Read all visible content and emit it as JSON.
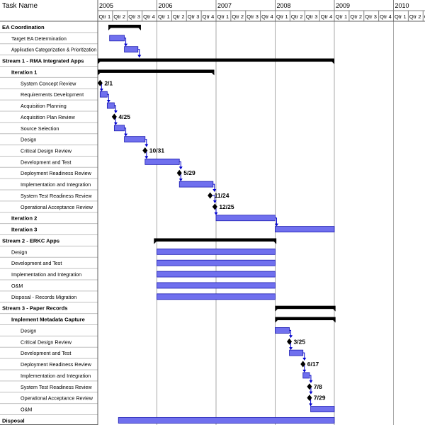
{
  "chart_data": {
    "type": "gantt",
    "header": {
      "task_name_label": "Task Name",
      "years": [
        "2005",
        "2006",
        "2007",
        "2008",
        "2009",
        "2010"
      ],
      "quarters": [
        "Qtr 1",
        "Qtr 2",
        "Qtr 3",
        "Qtr 4"
      ]
    },
    "colors": {
      "bar": "#7070ee",
      "bar_border": "#1a1ab0",
      "summary": "#000000",
      "milestone": "#000000",
      "arrow": "#0000cc",
      "grid": "#c0c0c0",
      "header_grid": "#808080",
      "vertical_grid": "#a8a8a8"
    },
    "tasks": [
      {
        "name": "EA Coordination",
        "level": 0,
        "bold": true,
        "kind": "summary",
        "start": 2005.18,
        "end": 2005.73
      },
      {
        "name": "Target EA Determination",
        "level": 1,
        "bold": false,
        "kind": "task",
        "start": 2005.2,
        "end": 2005.45
      },
      {
        "name": "Application Categorization & Prioritization",
        "level": 1,
        "bold": false,
        "kind": "task",
        "start": 2005.45,
        "end": 2005.68
      },
      {
        "name": "Stream 1 - RMA Integrated Apps",
        "level": 0,
        "bold": true,
        "kind": "summary",
        "start": 2005.0,
        "end": 2009.0
      },
      {
        "name": "Iteration 1",
        "level": 1,
        "bold": true,
        "kind": "summary",
        "start": 2005.0,
        "end": 2006.97
      },
      {
        "name": "System Concept Review",
        "level": 2,
        "bold": false,
        "kind": "milestone",
        "date": 2005.04,
        "label": "2/1"
      },
      {
        "name": "Requirements Development",
        "level": 2,
        "bold": false,
        "kind": "task",
        "start": 2005.04,
        "end": 2005.16
      },
      {
        "name": "Acquisition Planning",
        "level": 2,
        "bold": false,
        "kind": "task",
        "start": 2005.16,
        "end": 2005.28
      },
      {
        "name": "Acquisition Plan Review",
        "level": 2,
        "bold": false,
        "kind": "milestone",
        "date": 2005.28,
        "label": "4/25"
      },
      {
        "name": "Source Selection",
        "level": 2,
        "bold": false,
        "kind": "task",
        "start": 2005.28,
        "end": 2005.45
      },
      {
        "name": "Design",
        "level": 2,
        "bold": false,
        "kind": "task",
        "start": 2005.45,
        "end": 2005.8
      },
      {
        "name": "Critical Design Review",
        "level": 2,
        "bold": false,
        "kind": "milestone",
        "date": 2005.8,
        "label": "10/31"
      },
      {
        "name": "Development and Test",
        "level": 2,
        "bold": false,
        "kind": "task",
        "start": 2005.8,
        "end": 2006.38
      },
      {
        "name": "Deployment Readiness Review",
        "level": 2,
        "bold": false,
        "kind": "milestone",
        "date": 2006.38,
        "label": "5/29"
      },
      {
        "name": "Implementation and Integration",
        "level": 2,
        "bold": false,
        "kind": "task",
        "start": 2006.38,
        "end": 2006.95
      },
      {
        "name": "System Test Readiness Review",
        "level": 2,
        "bold": false,
        "kind": "milestone",
        "date": 2006.9,
        "label": "11/24"
      },
      {
        "name": "Operational Acceptance Review",
        "level": 2,
        "bold": false,
        "kind": "milestone",
        "date": 2006.98,
        "label": "12/25"
      },
      {
        "name": "Iteration 2",
        "level": 1,
        "bold": true,
        "kind": "task",
        "start": 2007.0,
        "end": 2008.0
      },
      {
        "name": "Iteration 3",
        "level": 1,
        "bold": true,
        "kind": "task",
        "start": 2008.0,
        "end": 2009.0
      },
      {
        "name": "Stream 2 - ERKC Apps",
        "level": 0,
        "bold": true,
        "kind": "summary",
        "start": 2005.95,
        "end": 2008.02
      },
      {
        "name": "Design",
        "level": 1,
        "bold": false,
        "kind": "task",
        "start": 2006.0,
        "end": 2008.0
      },
      {
        "name": "Development and Test",
        "level": 1,
        "bold": false,
        "kind": "task",
        "start": 2006.0,
        "end": 2008.0
      },
      {
        "name": "Implementation and Integration",
        "level": 1,
        "bold": false,
        "kind": "task",
        "start": 2006.0,
        "end": 2008.0
      },
      {
        "name": "O&M",
        "level": 1,
        "bold": false,
        "kind": "task",
        "start": 2006.0,
        "end": 2008.0
      },
      {
        "name": "Disposal - Records Migration",
        "level": 1,
        "bold": false,
        "kind": "task",
        "start": 2006.0,
        "end": 2008.0
      },
      {
        "name": "Stream 3 - Paper Records",
        "level": 0,
        "bold": true,
        "kind": "summary",
        "start": 2008.0,
        "end": 2009.02
      },
      {
        "name": "Implement Metadata Capture",
        "level": 1,
        "bold": true,
        "kind": "summary",
        "start": 2008.0,
        "end": 2009.02
      },
      {
        "name": "Design",
        "level": 2,
        "bold": false,
        "kind": "task",
        "start": 2008.0,
        "end": 2008.24
      },
      {
        "name": "Critical Design Review",
        "level": 2,
        "bold": false,
        "kind": "milestone",
        "date": 2008.24,
        "label": "3/25"
      },
      {
        "name": "Development and Test",
        "level": 2,
        "bold": false,
        "kind": "task",
        "start": 2008.24,
        "end": 2008.47
      },
      {
        "name": "Deployment Readiness Review",
        "level": 2,
        "bold": false,
        "kind": "milestone",
        "date": 2008.47,
        "label": "6/17"
      },
      {
        "name": "Implementation and Integration",
        "level": 2,
        "bold": false,
        "kind": "task",
        "start": 2008.47,
        "end": 2008.58
      },
      {
        "name": "System Test Readiness Review",
        "level": 2,
        "bold": false,
        "kind": "milestone",
        "date": 2008.58,
        "label": "7/8"
      },
      {
        "name": "Operational Acceptance Review",
        "level": 2,
        "bold": false,
        "kind": "milestone",
        "date": 2008.58,
        "label": "7/29"
      },
      {
        "name": "O&M",
        "level": 2,
        "bold": false,
        "kind": "task",
        "start": 2008.6,
        "end": 2009.0
      },
      {
        "name": "Disposal",
        "level": 0,
        "bold": true,
        "kind": "task",
        "start": 2005.35,
        "end": 2009.0
      }
    ],
    "links": [
      [
        1,
        2
      ],
      [
        2,
        3
      ],
      [
        5,
        6
      ],
      [
        6,
        7
      ],
      [
        7,
        8
      ],
      [
        8,
        9
      ],
      [
        9,
        10
      ],
      [
        10,
        11
      ],
      [
        11,
        12
      ],
      [
        12,
        13
      ],
      [
        13,
        14
      ],
      [
        14,
        15
      ],
      [
        15,
        16
      ],
      [
        16,
        17
      ],
      [
        17,
        18
      ],
      [
        27,
        28
      ],
      [
        28,
        29
      ],
      [
        29,
        30
      ],
      [
        30,
        31
      ],
      [
        31,
        32
      ],
      [
        32,
        33
      ],
      [
        33,
        34
      ]
    ]
  }
}
